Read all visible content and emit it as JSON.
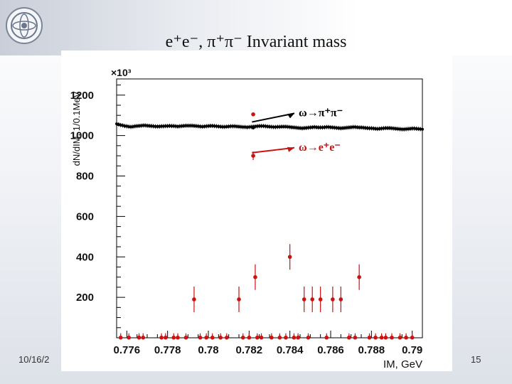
{
  "slide": {
    "title": "e⁺e⁻, π⁺π⁻ Invariant mass",
    "date": "10/16/2",
    "page_number": "15"
  },
  "colors": {
    "pipi_series": "#000000",
    "ee_series": "#cc1111",
    "annotation_pipi": "#000000",
    "annotation_ee": "#cc1111"
  },
  "logo": {
    "icon": "institute-logo-icon"
  },
  "chart_data": {
    "type": "scatter",
    "title": "e⁺e⁻, π⁺π⁻ Invariant mass",
    "xlabel": "IM, GeV",
    "ylabel": "dN/dIM, 1/0.1MeV",
    "y_multiplier_label": "×10³",
    "xlim": [
      0.7755,
      0.7905
    ],
    "ylim": [
      0,
      1280
    ],
    "x_ticks": [
      0.776,
      0.778,
      0.78,
      0.782,
      0.784,
      0.786,
      0.788,
      0.79
    ],
    "x_tick_labels": [
      "0.776",
      "0.778",
      "0.78",
      "0.782",
      "0.784",
      "0.786",
      "0.788",
      "0.79"
    ],
    "y_ticks": [
      200,
      400,
      600,
      800,
      1000,
      1200
    ],
    "y_tick_labels": [
      "200",
      "400",
      "600",
      "800",
      "1000",
      "1200"
    ],
    "grid": false,
    "legend": "none",
    "annotations": [
      {
        "text": "ω→π⁺π⁻",
        "points_to": [
          0.782,
          1060
        ]
      },
      {
        "text": "ω→e⁺e⁻",
        "points_to": [
          0.782,
          915
        ]
      }
    ],
    "series": [
      {
        "name": "ω→π⁺π⁻",
        "x_start": 0.7755,
        "x_step": 0.0001,
        "values": [
          1058,
          1055,
          1052,
          1050,
          1047,
          1046,
          1044,
          1043,
          1044,
          1046,
          1047,
          1048,
          1049,
          1050,
          1050,
          1049,
          1048,
          1047,
          1046,
          1045,
          1045,
          1045,
          1046,
          1046,
          1047,
          1047,
          1048,
          1047,
          1047,
          1046,
          1045,
          1046,
          1047,
          1048,
          1049,
          1049,
          1049,
          1049,
          1048,
          1047,
          1046,
          1045,
          1044,
          1045,
          1046,
          1047,
          1048,
          1048,
          1047,
          1046,
          1045,
          1044,
          1043,
          1043,
          1044,
          1045,
          1046,
          1046,
          1046,
          1045,
          1044,
          1043,
          1042,
          1042,
          1041,
          1042,
          1043,
          1044,
          1045,
          1046,
          1047,
          1047,
          1047,
          1046,
          1045,
          1044,
          1043,
          1042,
          1042,
          1043,
          1043,
          1044,
          1044,
          1044,
          1043,
          1042,
          1041,
          1040,
          1039,
          1038,
          1037,
          1036,
          1037,
          1038,
          1039,
          1040,
          1041,
          1042,
          1041,
          1040,
          1040,
          1040,
          1041,
          1042,
          1042,
          1041,
          1040,
          1039,
          1038,
          1037,
          1036,
          1037,
          1038,
          1039,
          1040,
          1041,
          1042,
          1042,
          1041,
          1040,
          1040,
          1039,
          1038,
          1037,
          1036,
          1036,
          1035,
          1034,
          1033,
          1034,
          1035,
          1036,
          1037,
          1037,
          1037,
          1036,
          1035,
          1034,
          1033,
          1032,
          1031,
          1031,
          1032,
          1033,
          1034,
          1035,
          1035,
          1034,
          1033,
          1032,
          1031
        ]
      },
      {
        "name": "ω→e⁺e⁻",
        "points": [
          {
            "x": 0.7757,
            "y": 1
          },
          {
            "x": 0.7761,
            "y": 1
          },
          {
            "x": 0.7766,
            "y": 1
          },
          {
            "x": 0.7768,
            "y": 1
          },
          {
            "x": 0.7777,
            "y": 1
          },
          {
            "x": 0.7779,
            "y": 1
          },
          {
            "x": 0.7783,
            "y": 1
          },
          {
            "x": 0.7785,
            "y": 1
          },
          {
            "x": 0.7789,
            "y": 1
          },
          {
            "x": 0.7793,
            "y": 190
          },
          {
            "x": 0.7796,
            "y": 1
          },
          {
            "x": 0.7799,
            "y": 1
          },
          {
            "x": 0.7802,
            "y": 1
          },
          {
            "x": 0.7806,
            "y": 1
          },
          {
            "x": 0.7809,
            "y": 1
          },
          {
            "x": 0.7815,
            "y": 190
          },
          {
            "x": 0.7817,
            "y": 1
          },
          {
            "x": 0.782,
            "y": 1
          },
          {
            "x": 0.7822,
            "y": 900
          },
          {
            "x": 0.7823,
            "y": 300
          },
          {
            "x": 0.7824,
            "y": 1
          },
          {
            "x": 0.7826,
            "y": 1
          },
          {
            "x": 0.7831,
            "y": 1
          },
          {
            "x": 0.7835,
            "y": 1
          },
          {
            "x": 0.7838,
            "y": 1
          },
          {
            "x": 0.784,
            "y": 400
          },
          {
            "x": 0.7842,
            "y": 1
          },
          {
            "x": 0.7844,
            "y": 1
          },
          {
            "x": 0.7847,
            "y": 190
          },
          {
            "x": 0.7849,
            "y": 1
          },
          {
            "x": 0.7851,
            "y": 190
          },
          {
            "x": 0.7855,
            "y": 190
          },
          {
            "x": 0.7858,
            "y": 1
          },
          {
            "x": 0.7861,
            "y": 190
          },
          {
            "x": 0.7865,
            "y": 190
          },
          {
            "x": 0.7869,
            "y": 1
          },
          {
            "x": 0.7872,
            "y": 1
          },
          {
            "x": 0.7874,
            "y": 300
          },
          {
            "x": 0.7879,
            "y": 1
          },
          {
            "x": 0.7882,
            "y": 1
          },
          {
            "x": 0.7885,
            "y": 1
          },
          {
            "x": 0.7887,
            "y": 1
          },
          {
            "x": 0.789,
            "y": 1
          },
          {
            "x": 0.7894,
            "y": 1
          },
          {
            "x": 0.7897,
            "y": 1
          },
          {
            "x": 0.79,
            "y": 1
          }
        ]
      }
    ]
  }
}
